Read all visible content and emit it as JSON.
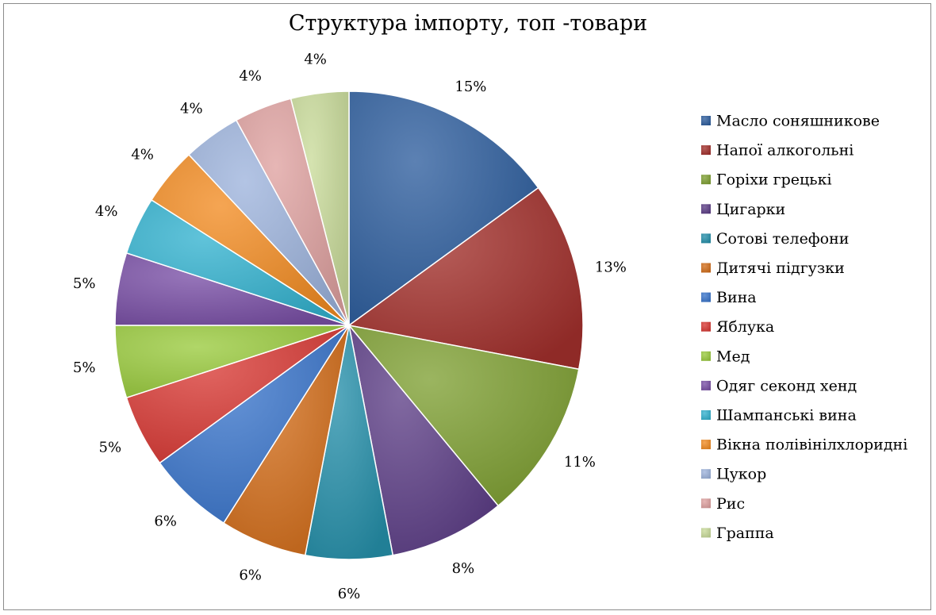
{
  "chart_data": {
    "type": "pie",
    "title": "Структура імпорту, топ -товари",
    "legend_position": "right",
    "start_angle_deg": 0,
    "direction": "clockwise",
    "shading": "radial-highlight",
    "slices": [
      {
        "label": "Масло соняшникове",
        "value": 15,
        "display": "15%",
        "color": "#2E5E9E"
      },
      {
        "label": "Напої алкогольні",
        "value": 13,
        "display": "13%",
        "color": "#A3302C"
      },
      {
        "label": "Горіхи грецькі",
        "value": 11,
        "display": "11%",
        "color": "#7FA033"
      },
      {
        "label": "Цигарки",
        "value": 8,
        "display": "8%",
        "color": "#5D3F87"
      },
      {
        "label": "Сотові телефони",
        "value": 6,
        "display": "6%",
        "color": "#2690AB"
      },
      {
        "label": "Дитячі підгузки",
        "value": 6,
        "display": "6%",
        "color": "#D36E1B"
      },
      {
        "label": "Вина",
        "value": 6,
        "display": "6%",
        "color": "#3B76CC"
      },
      {
        "label": "Яблука",
        "value": 5,
        "display": "5%",
        "color": "#D93A35"
      },
      {
        "label": "Мед",
        "value": 5,
        "display": "5%",
        "color": "#9ACB3E"
      },
      {
        "label": "Одяг секонд хенд",
        "value": 5,
        "display": "5%",
        "color": "#7A4FA6"
      },
      {
        "label": "Шампанські вина",
        "value": 4,
        "display": "4%",
        "color": "#33B2CF"
      },
      {
        "label": "Вікна полівінілхлоридні",
        "value": 4,
        "display": "4%",
        "color": "#F28C22"
      },
      {
        "label": "Цукор",
        "value": 4,
        "display": "4%",
        "color": "#9DB3DD"
      },
      {
        "label": "Рис",
        "value": 4,
        "display": "4%",
        "color": "#DFA1A0"
      },
      {
        "label": "Граппа",
        "value": 4,
        "display": "4%",
        "color": "#C9DB9A"
      }
    ]
  }
}
